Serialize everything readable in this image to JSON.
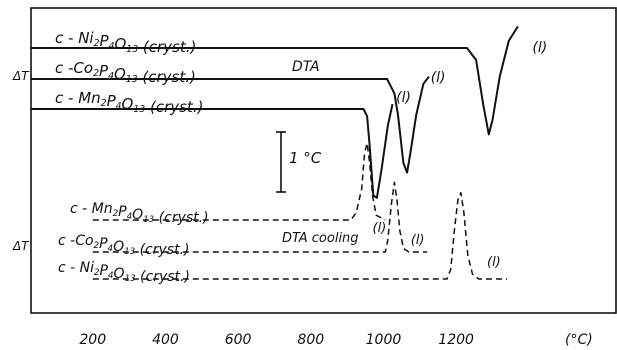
{
  "chart_data": {
    "type": "line",
    "x_unit": "(°C)",
    "x_ticks": [
      200,
      400,
      600,
      800,
      1000,
      1200
    ],
    "xlim": [
      30,
      1640
    ],
    "ylabel_upper": "ΔT",
    "ylabel_lower": "ΔT",
    "scale_bar": "1 °C",
    "annotations": [
      "DTA",
      "DTA cooling"
    ],
    "heating_series": [
      {
        "label_base": "c - Ni",
        "label_sub1": "2",
        "label_mid": "P",
        "label_sub2": "4",
        "label_mid2": "O",
        "label_sub3": "13",
        "label_suffix": "  (cryst.)",
        "melt_label": "(l)",
        "points": [
          [
            30,
            0
          ],
          [
            1230,
            0
          ],
          [
            1255,
            -0.5
          ],
          [
            1275,
            -2.4
          ],
          [
            1290,
            -3.6
          ],
          [
            1300,
            -3.0
          ],
          [
            1320,
            -1.2
          ],
          [
            1345,
            0.3
          ],
          [
            1370,
            0.9
          ]
        ]
      },
      {
        "label_base": "c -Co",
        "label_sub1": "2",
        "label_mid": "P",
        "label_sub2": "4",
        "label_mid2": "O",
        "label_sub3": "13",
        "label_suffix": "  (cryst.)",
        "melt_label": "(l)",
        "points": [
          [
            30,
            0
          ],
          [
            1010,
            0
          ],
          [
            1030,
            -0.6
          ],
          [
            1040,
            -1.5
          ],
          [
            1055,
            -3.5
          ],
          [
            1065,
            -3.9
          ],
          [
            1075,
            -3.0
          ],
          [
            1090,
            -1.5
          ],
          [
            1110,
            -0.2
          ],
          [
            1125,
            0.1
          ]
        ]
      },
      {
        "label_base": "c - Mn",
        "label_sub1": "2",
        "label_mid": "P",
        "label_sub2": "4",
        "label_mid2": "O",
        "label_sub3": "13",
        "label_suffix": "  (cryst.)",
        "melt_label": "(l)",
        "points": [
          [
            30,
            0
          ],
          [
            945,
            0
          ],
          [
            955,
            -0.3
          ],
          [
            962,
            -1.5
          ],
          [
            972,
            -3.6
          ],
          [
            982,
            -3.7
          ],
          [
            995,
            -2.5
          ],
          [
            1012,
            -0.7
          ],
          [
            1025,
            0.2
          ]
        ]
      }
    ],
    "cooling_series": [
      {
        "label_base": "c - Mn",
        "label_sub1": "2",
        "label_mid": "P",
        "label_sub2": "4",
        "label_mid2": "O",
        "label_sub3": "13",
        "label_suffix": "  (cryst.)",
        "melt_label": "(l)",
        "points": [
          [
            200,
            0
          ],
          [
            910,
            0
          ],
          [
            925,
            0.3
          ],
          [
            940,
            1.3
          ],
          [
            948,
            2.8
          ],
          [
            955,
            3.2
          ],
          [
            962,
            2.4
          ],
          [
            970,
            1.0
          ],
          [
            980,
            0.2
          ],
          [
            1005,
            0
          ]
        ]
      },
      {
        "label_base": "c -Co",
        "label_sub1": "2",
        "label_mid": "P",
        "label_sub2": "4",
        "label_mid2": "O",
        "label_sub3": "13",
        "label_suffix": "  (cryst.)",
        "melt_label": "(l)",
        "points": [
          [
            200,
            0
          ],
          [
            1005,
            0
          ],
          [
            1012,
            0.5
          ],
          [
            1022,
            2.0
          ],
          [
            1030,
            2.9
          ],
          [
            1037,
            2.2
          ],
          [
            1045,
            0.9
          ],
          [
            1055,
            0.15
          ],
          [
            1070,
            0
          ],
          [
            1120,
            0
          ]
        ]
      },
      {
        "label_base": "c - Ni",
        "label_sub1": "2",
        "label_mid": "P",
        "label_sub2": "4",
        "label_mid2": "O",
        "label_sub3": "13",
        "label_suffix": "  (cryst.)",
        "melt_label": "(l)",
        "points": [
          [
            200,
            0
          ],
          [
            1175,
            0
          ],
          [
            1185,
            0.4
          ],
          [
            1195,
            2.0
          ],
          [
            1205,
            3.3
          ],
          [
            1213,
            3.6
          ],
          [
            1221,
            2.8
          ],
          [
            1232,
            1.0
          ],
          [
            1245,
            0.2
          ],
          [
            1262,
            0
          ],
          [
            1340,
            0
          ]
        ]
      }
    ]
  }
}
